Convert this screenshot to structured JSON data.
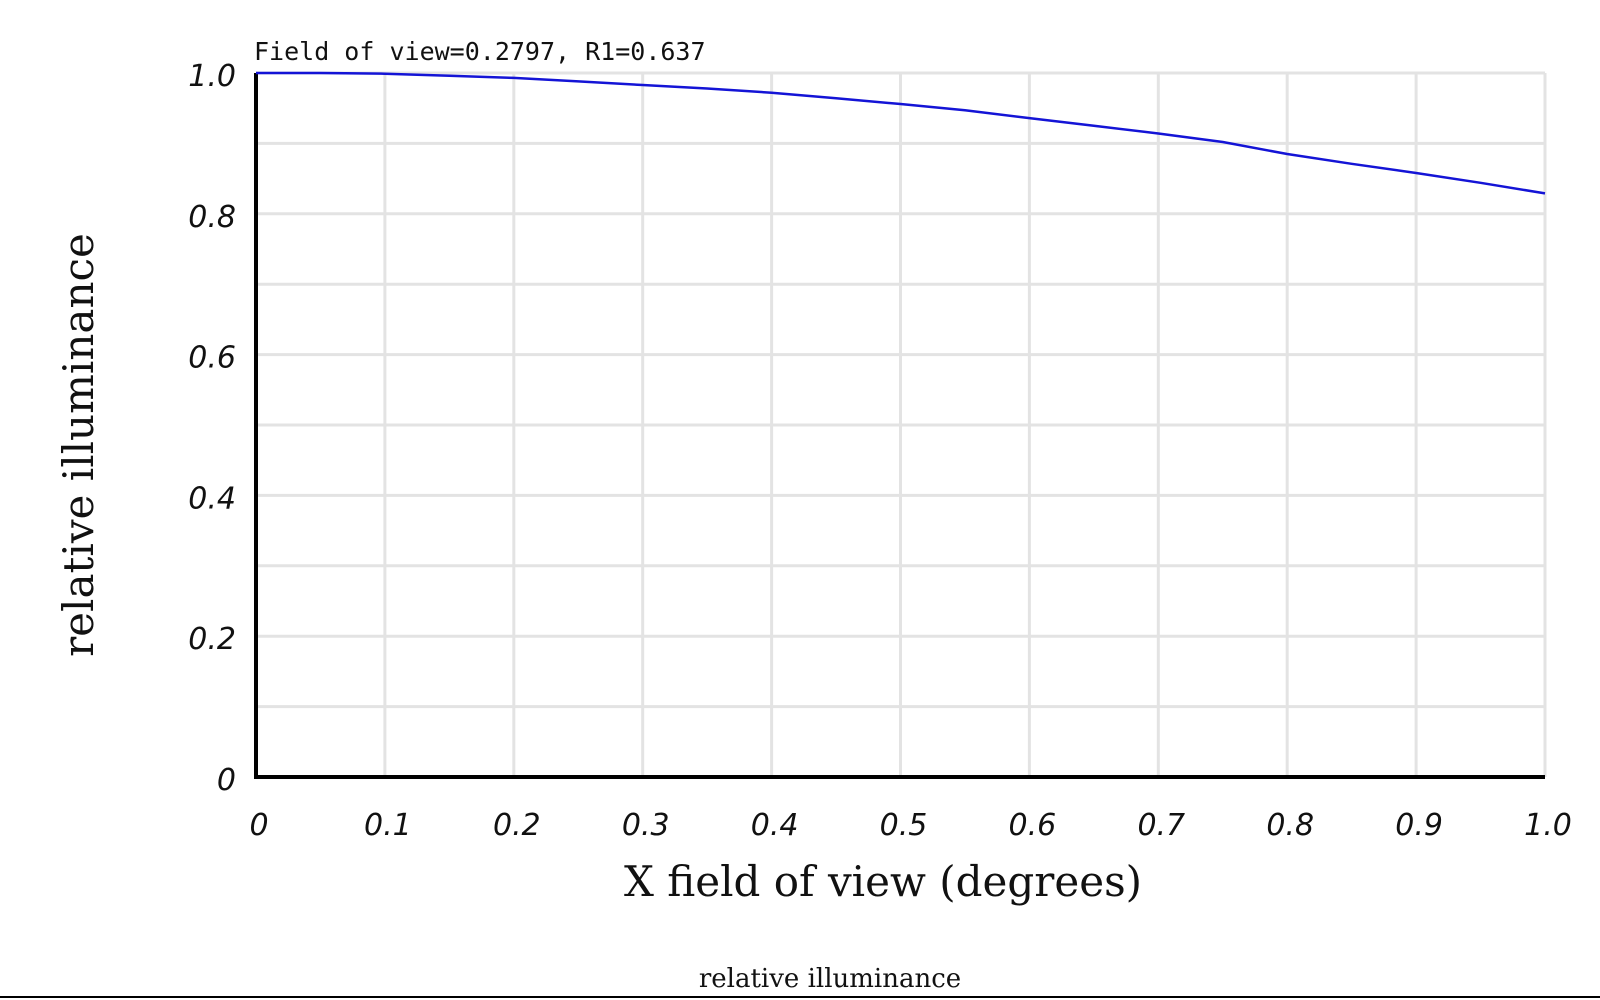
{
  "chart_data": {
    "type": "line",
    "title": "Field of view=0.2797, R1=0.637",
    "xlabel": "X field of view (degrees)",
    "ylabel": "relative illuminance",
    "caption": "relative illuminance",
    "xlim": [
      0,
      1.0
    ],
    "ylim": [
      0,
      1.0
    ],
    "x_ticks": [
      "0",
      "0.1",
      "0.2",
      "0.3",
      "0.4",
      "0.5",
      "0.6",
      "0.7",
      "0.8",
      "0.9",
      "1.0"
    ],
    "y_ticks": [
      "0",
      "0.2",
      "0.4",
      "0.6",
      "0.8",
      "1.0"
    ],
    "x_grid": [
      0.1,
      0.2,
      0.3,
      0.4,
      0.5,
      0.6,
      0.7,
      0.8,
      0.9,
      1.0
    ],
    "y_grid": [
      0.1,
      0.2,
      0.3,
      0.4,
      0.5,
      0.6,
      0.7,
      0.8,
      0.9,
      1.0
    ],
    "grid": true,
    "line_color": "#1414d6",
    "series": [
      {
        "x": [
          0,
          0.05,
          0.1,
          0.15,
          0.2,
          0.25,
          0.3,
          0.35,
          0.4,
          0.45,
          0.5,
          0.55,
          0.6,
          0.65,
          0.7,
          0.75,
          0.8,
          0.85,
          0.9,
          0.95,
          1.0
        ],
        "y": [
          1.0,
          1.0,
          0.999,
          0.996,
          0.993,
          0.988,
          0.983,
          0.978,
          0.972,
          0.964,
          0.956,
          0.947,
          0.936,
          0.925,
          0.914,
          0.902,
          0.885,
          0.871,
          0.858,
          0.844,
          0.829
        ]
      }
    ]
  }
}
